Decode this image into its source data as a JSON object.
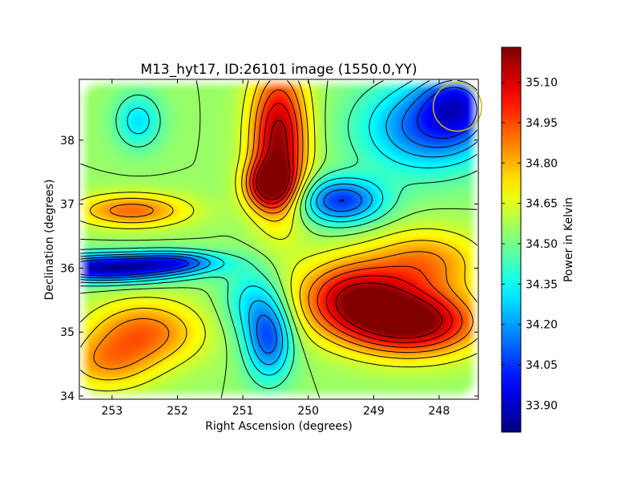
{
  "chart_data": {
    "type": "heatmap",
    "title": "M13_hyt17, ID:26101 image (1550.0,YY)",
    "xlabel": "Right Ascension (degrees)",
    "ylabel": "Declination (degrees)",
    "xlim": [
      253.5,
      247.4
    ],
    "ylim": [
      33.95,
      38.95
    ],
    "x_ticks": [
      253,
      252,
      251,
      250,
      249,
      248
    ],
    "y_ticks": [
      34,
      35,
      36,
      37,
      38
    ],
    "x_tick_labels": [
      "253",
      "252",
      "251",
      "250",
      "249",
      "248"
    ],
    "y_tick_labels": [
      "34",
      "35",
      "36",
      "37",
      "38"
    ],
    "colormap": "jet",
    "colorbar": {
      "label": "Power in Kelvin",
      "range": [
        33.8,
        35.23
      ],
      "ticks": [
        33.9,
        34.05,
        34.2,
        34.35,
        34.5,
        34.65,
        34.8,
        34.95,
        35.1
      ],
      "tick_labels": [
        "33.90",
        "34.05",
        "34.20",
        "34.35",
        "34.50",
        "34.65",
        "34.80",
        "34.95",
        "35.10"
      ]
    },
    "background_level": 34.55,
    "features": [
      {
        "ra": 250.45,
        "dec": 38.0,
        "value": 35.2,
        "sigma_ra": 0.3,
        "sigma_dec": 0.8
      },
      {
        "ra": 250.6,
        "dec": 37.3,
        "value": 35.05,
        "sigma_ra": 0.25,
        "sigma_dec": 0.25
      },
      {
        "ra": 248.4,
        "dec": 35.15,
        "value": 35.24,
        "sigma_ra": 0.7,
        "sigma_dec": 0.35
      },
      {
        "ra": 249.3,
        "dec": 35.55,
        "value": 35.1,
        "sigma_ra": 0.6,
        "sigma_dec": 0.4
      },
      {
        "ra": 248.2,
        "dec": 36.1,
        "value": 34.85,
        "sigma_ra": 0.6,
        "sigma_dec": 0.35
      },
      {
        "ra": 253.1,
        "dec": 36.0,
        "value": 33.85,
        "sigma_ra": 0.8,
        "sigma_dec": 0.15
      },
      {
        "ra": 252.0,
        "dec": 36.1,
        "value": 34.2,
        "sigma_ra": 0.5,
        "sigma_dec": 0.12
      },
      {
        "ra": 252.7,
        "dec": 36.9,
        "value": 34.9,
        "sigma_ra": 0.6,
        "sigma_dec": 0.18
      },
      {
        "ra": 249.5,
        "dec": 37.05,
        "value": 34.05,
        "sigma_ra": 0.45,
        "sigma_dec": 0.25
      },
      {
        "ra": 248.2,
        "dec": 38.2,
        "value": 34.12,
        "sigma_ra": 0.7,
        "sigma_dec": 0.5
      },
      {
        "ra": 247.7,
        "dec": 38.6,
        "value": 34.15,
        "sigma_ra": 0.4,
        "sigma_dec": 0.4
      },
      {
        "ra": 250.6,
        "dec": 34.9,
        "value": 34.1,
        "sigma_ra": 0.25,
        "sigma_dec": 0.45
      },
      {
        "ra": 250.9,
        "dec": 35.5,
        "value": 34.35,
        "sigma_ra": 0.3,
        "sigma_dec": 0.4
      },
      {
        "ra": 252.5,
        "dec": 35.0,
        "value": 34.9,
        "sigma_ra": 0.6,
        "sigma_dec": 0.35
      },
      {
        "ra": 253.1,
        "dec": 34.5,
        "value": 34.8,
        "sigma_ra": 0.5,
        "sigma_dec": 0.3
      },
      {
        "ra": 252.6,
        "dec": 38.3,
        "value": 34.3,
        "sigma_ra": 0.25,
        "sigma_dec": 0.3
      }
    ],
    "contour_levels": [
      34.05,
      34.15,
      34.25,
      34.35,
      34.45,
      34.55,
      34.65,
      34.75,
      34.85,
      34.95,
      35.05,
      35.15
    ],
    "beam_marker": {
      "ra": 247.72,
      "dec": 38.52,
      "radius_deg": 0.37,
      "color": "#c8b428"
    },
    "colors": {
      "contour": "#000000",
      "frame": "#000000",
      "beam": "#c8b428"
    }
  }
}
